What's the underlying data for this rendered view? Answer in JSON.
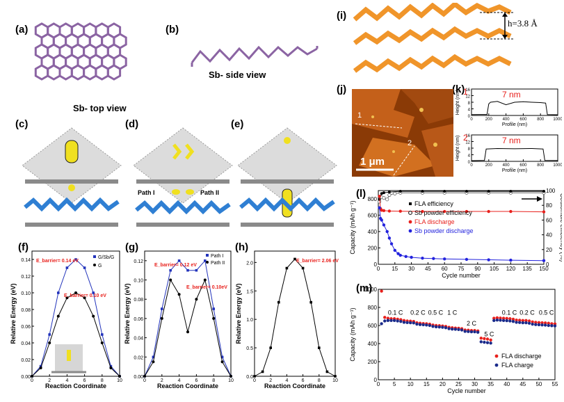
{
  "labels": {
    "a": "(a)",
    "b": "(b)",
    "c": "(c)",
    "d": "(d)",
    "e": "(e)",
    "f": "(f)",
    "g": "(g)",
    "h": "(h)",
    "i": "(i)",
    "j": "(j)",
    "k": "(k)",
    "l": "(l)",
    "m": "(m)"
  },
  "panel_a": {
    "caption": "Sb- top view"
  },
  "panel_b": {
    "caption": "Sb- side view"
  },
  "panel_d": {
    "path1": "Path I",
    "path2": "Path II"
  },
  "panel_i": {
    "height_label": "h=3.8 Å"
  },
  "panel_j": {
    "scale_label": "1 μm",
    "line1": "1",
    "line2": "2"
  },
  "colors": {
    "sb": "#8b64a3",
    "carbon": "#8a8a8a",
    "antimony_blue": "#2f7fd3",
    "li": "#f0e020",
    "afm_bg": "#8a3a06",
    "orange": "#f0952a",
    "red": "#e8201c",
    "blue": "#2222dd"
  },
  "chart_data": [
    {
      "id": "f",
      "type": "line",
      "xlabel": "Reaction Coordinate",
      "ylabel": "Relative Energy (eV)",
      "xlim": [
        0,
        10
      ],
      "ylim": [
        0,
        0.15
      ],
      "xticks": [
        "0",
        "2",
        "4",
        "6",
        "8",
        "10"
      ],
      "yticks": [
        "0.00",
        "0.02",
        "0.04",
        "0.06",
        "0.08",
        "0.10",
        "0.12",
        "0.14"
      ],
      "annotations": [
        "E_barrier= 0.14 eV",
        "E_barrier= 0.10 eV"
      ],
      "series": [
        {
          "name": "G/Sb/G",
          "x": [
            0,
            1,
            2,
            3,
            4,
            5,
            6,
            7,
            8,
            9,
            10
          ],
          "y": [
            0.0,
            0.012,
            0.05,
            0.1,
            0.13,
            0.14,
            0.13,
            0.1,
            0.05,
            0.012,
            0.0
          ]
        },
        {
          "name": "G",
          "x": [
            0,
            1,
            2,
            3,
            4,
            5,
            6,
            7,
            8,
            9,
            10
          ],
          "y": [
            0.0,
            0.01,
            0.04,
            0.072,
            0.094,
            0.1,
            0.094,
            0.072,
            0.04,
            0.01,
            0.0
          ]
        }
      ]
    },
    {
      "id": "g",
      "type": "line",
      "xlabel": "Reaction Coordinate",
      "ylabel": "Relative Energy (eV)",
      "xlim": [
        0,
        10
      ],
      "ylim": [
        0,
        0.13
      ],
      "xticks": [
        "0",
        "2",
        "4",
        "6",
        "8",
        "10"
      ],
      "yticks": [
        "0.00",
        "0.02",
        "0.04",
        "0.06",
        "0.08",
        "0.10",
        "0.12"
      ],
      "annotations": [
        "E_barrier= 0.12 eV",
        "E_barrier= 0.10eV"
      ],
      "series": [
        {
          "name": "Path I",
          "x": [
            0,
            1,
            2,
            3,
            4,
            5,
            6,
            7,
            8,
            9,
            10
          ],
          "y": [
            0.0,
            0.02,
            0.07,
            0.11,
            0.12,
            0.11,
            0.11,
            0.12,
            0.07,
            0.02,
            0.0
          ]
        },
        {
          "name": "Path II",
          "x": [
            0,
            1,
            2,
            3,
            4,
            5,
            6,
            7,
            8,
            9,
            10
          ],
          "y": [
            0.0,
            0.015,
            0.06,
            0.1,
            0.085,
            0.046,
            0.08,
            0.1,
            0.06,
            0.015,
            0.0
          ]
        }
      ]
    },
    {
      "id": "h",
      "type": "line",
      "xlabel": "Reaction Coordinate",
      "ylabel": "Relative Energy (eV)",
      "xlim": [
        0,
        10
      ],
      "ylim": [
        0,
        2.2
      ],
      "xticks": [
        "0",
        "2",
        "4",
        "6",
        "8",
        "10"
      ],
      "yticks": [
        "0.0",
        "0.5",
        "1.0",
        "1.5",
        "2.0"
      ],
      "annotations": [
        "E_barrier= 2.06 eV"
      ],
      "series": [
        {
          "name": "",
          "x": [
            0,
            1,
            2,
            3,
            4,
            5,
            6,
            7,
            8,
            9,
            10
          ],
          "y": [
            0.0,
            0.08,
            0.5,
            1.3,
            1.9,
            2.06,
            1.9,
            1.3,
            0.5,
            0.08,
            0.0
          ]
        }
      ]
    },
    {
      "id": "k1",
      "type": "line",
      "xlabel": "Profile (nm)",
      "ylabel": "Height (nm)",
      "label": "1",
      "annotation": "7 nm",
      "xlim": [
        0,
        1000
      ],
      "ylim": [
        0,
        16
      ],
      "xticks": [
        "0",
        "200",
        "400",
        "600",
        "800",
        "1000"
      ],
      "yticks": [
        "0",
        "4",
        "8",
        "12",
        "16"
      ],
      "series": [
        {
          "name": "",
          "x": [
            0,
            100,
            180,
            200,
            220,
            300,
            400,
            500,
            600,
            700,
            800,
            860,
            880,
            1000
          ],
          "y": [
            0.5,
            0.6,
            0.6,
            7,
            8,
            8.5,
            6.5,
            8,
            8.3,
            8,
            7.8,
            7.5,
            0.5,
            0.4
          ]
        }
      ]
    },
    {
      "id": "k2",
      "type": "line",
      "xlabel": "Profile (nm)",
      "ylabel": "Height (nm)",
      "label": "2",
      "annotation": "7 nm",
      "xlim": [
        0,
        1000
      ],
      "ylim": [
        0,
        16
      ],
      "xticks": [
        "0",
        "200",
        "400",
        "600",
        "800",
        "1000"
      ],
      "yticks": [
        "0",
        "4",
        "8",
        "12",
        "16"
      ],
      "series": [
        {
          "name": "",
          "x": [
            0,
            100,
            150,
            170,
            300,
            500,
            700,
            830,
            850,
            1000
          ],
          "y": [
            0.4,
            0.5,
            0.6,
            7.5,
            7.8,
            7.6,
            7.8,
            7.5,
            0.6,
            0.5
          ]
        }
      ]
    },
    {
      "id": "l",
      "type": "scatter",
      "xlabel": "Cycle number",
      "ylabel": "Capacity (mAh g⁻¹)",
      "y2label": "Coulombic efficiency (%)",
      "xlim": [
        0,
        150
      ],
      "ylim": [
        0,
        900
      ],
      "y2lim": [
        0,
        100
      ],
      "xticks": [
        "0",
        "15",
        "30",
        "45",
        "60",
        "75",
        "90",
        "105",
        "120",
        "135",
        "150"
      ],
      "yticks": [
        "0",
        "200",
        "400",
        "600",
        "800"
      ],
      "y2ticks": [
        "0",
        "20",
        "40",
        "60",
        "80",
        "100"
      ],
      "series": [
        {
          "name": "FLA efficiency",
          "axis": "y2",
          "x": [
            1,
            3,
            5,
            10,
            20,
            40,
            60,
            80,
            100,
            120,
            150
          ],
          "y": [
            88,
            96,
            97,
            98,
            99,
            99,
            99,
            99,
            99,
            99,
            99
          ]
        },
        {
          "name": "Sb powder efficiency",
          "axis": "y2",
          "x": [
            1,
            3,
            5,
            8,
            10,
            15,
            20,
            40,
            60,
            80,
            100,
            120,
            150
          ],
          "y": [
            85,
            91,
            90,
            88,
            94,
            96,
            97,
            97,
            97,
            97,
            97,
            97,
            97
          ]
        },
        {
          "name": "FLA discharge",
          "axis": "y",
          "x": [
            1,
            2,
            3,
            5,
            10,
            20,
            40,
            60,
            80,
            100,
            120,
            150
          ],
          "y": [
            830,
            680,
            660,
            655,
            650,
            648,
            645,
            645,
            645,
            645,
            645,
            640
          ]
        },
        {
          "name": "Sb powder discharge",
          "axis": "y",
          "x": [
            1,
            2,
            3,
            5,
            8,
            10,
            12,
            15,
            18,
            20,
            25,
            30,
            40,
            50,
            60,
            80,
            100,
            120,
            150
          ],
          "y": [
            690,
            560,
            540,
            480,
            400,
            320,
            250,
            170,
            130,
            110,
            95,
            85,
            75,
            70,
            65,
            60,
            55,
            50,
            45
          ]
        }
      ]
    },
    {
      "id": "m",
      "type": "scatter",
      "xlabel": "Cycle number",
      "ylabel": "Capacity (mAh g⁻¹)",
      "xlim": [
        0,
        55
      ],
      "ylim": [
        0,
        1000
      ],
      "xticks": [
        "0",
        "5",
        "10",
        "15",
        "20",
        "25",
        "30",
        "35",
        "40",
        "45",
        "50",
        "55"
      ],
      "yticks": [
        "0",
        "200",
        "400",
        "600",
        "800",
        "1000"
      ],
      "annotations": [
        "0.1 C",
        "0.2 C",
        "0.5 C",
        "1 C",
        "2 C",
        "5 C",
        "0.1 C",
        "0.2 C",
        "0.5 C"
      ],
      "series": [
        {
          "name": "FLA discharge",
          "x": [
            1,
            2,
            3,
            4,
            5,
            6,
            7,
            8,
            9,
            10,
            11,
            12,
            13,
            14,
            15,
            16,
            17,
            18,
            19,
            20,
            21,
            22,
            23,
            24,
            25,
            26,
            27,
            28,
            29,
            30,
            31,
            32,
            33,
            34,
            35,
            36,
            37,
            38,
            39,
            40,
            41,
            42,
            43,
            44,
            45,
            46,
            47,
            48,
            49,
            50,
            51,
            52,
            53,
            54,
            55
          ],
          "y": [
            980,
            690,
            680,
            675,
            675,
            670,
            665,
            655,
            650,
            648,
            645,
            630,
            625,
            622,
            620,
            615,
            605,
            600,
            598,
            595,
            590,
            580,
            575,
            572,
            570,
            565,
            550,
            548,
            545,
            545,
            540,
            460,
            455,
            450,
            440,
            680,
            685,
            682,
            680,
            678,
            675,
            670,
            660,
            658,
            655,
            655,
            650,
            640,
            635,
            632,
            630,
            628,
            625,
            620,
            618
          ]
        },
        {
          "name": "FLA charge",
          "x": [
            1,
            2,
            3,
            4,
            5,
            6,
            7,
            8,
            9,
            10,
            11,
            12,
            13,
            14,
            15,
            16,
            17,
            18,
            19,
            20,
            21,
            22,
            23,
            24,
            25,
            26,
            27,
            28,
            29,
            30,
            31,
            32,
            33,
            34,
            35,
            36,
            37,
            38,
            39,
            40,
            41,
            42,
            43,
            44,
            45,
            46,
            47,
            48,
            49,
            50,
            51,
            52,
            53,
            54,
            55
          ],
          "y": [
            620,
            650,
            655,
            655,
            655,
            650,
            645,
            635,
            632,
            630,
            628,
            615,
            610,
            608,
            605,
            600,
            590,
            585,
            583,
            580,
            575,
            565,
            560,
            558,
            555,
            550,
            535,
            533,
            530,
            530,
            525,
            420,
            415,
            410,
            405,
            655,
            660,
            658,
            655,
            653,
            650,
            645,
            635,
            633,
            630,
            630,
            625,
            615,
            610,
            608,
            606,
            604,
            600,
            598,
            596
          ]
        }
      ]
    }
  ]
}
